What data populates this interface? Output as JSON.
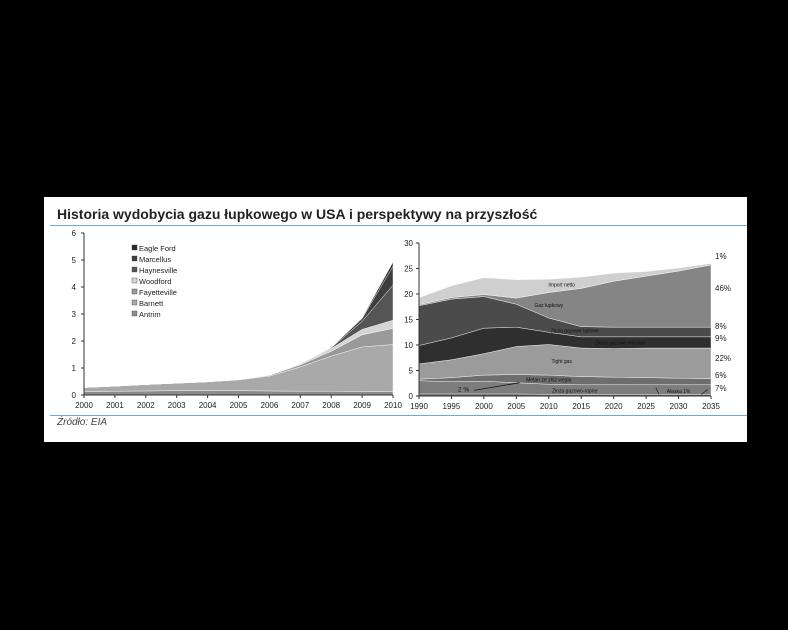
{
  "header": {
    "title": "Historia wydobycia gazu łupkowego w USA i perspektywy na przyszłość"
  },
  "footer": {
    "source": "Źródło: EIA"
  },
  "colors": {
    "rule": "#6fa8d6",
    "background": "#000000",
    "panel": "#ffffff"
  },
  "chart_data": [
    {
      "type": "area",
      "stacked": true,
      "title": "",
      "xlabel": "",
      "ylabel": "",
      "x": [
        2000,
        2001,
        2002,
        2003,
        2004,
        2005,
        2006,
        2007,
        2008,
        2009,
        2010
      ],
      "xticks": [
        "2000",
        "2001",
        "2002",
        "2003",
        "2004",
        "2005",
        "2006",
        "2007",
        "2008",
        "2009",
        "2010"
      ],
      "yticks": [
        "0",
        "1",
        "2",
        "3",
        "4",
        "5",
        "6"
      ],
      "ylim": [
        0,
        6
      ],
      "grid": false,
      "legend_position": "top-left",
      "series": [
        {
          "name": "Antrim",
          "color": "#8c8c8c",
          "values": [
            0.12,
            0.14,
            0.15,
            0.16,
            0.16,
            0.16,
            0.15,
            0.14,
            0.14,
            0.13,
            0.12
          ]
        },
        {
          "name": "Barnett",
          "color": "#a9a9a9",
          "values": [
            0.16,
            0.19,
            0.24,
            0.28,
            0.33,
            0.4,
            0.55,
            0.9,
            1.3,
            1.65,
            1.75
          ]
        },
        {
          "name": "Fayetteville",
          "color": "#9a9a9a",
          "values": [
            0,
            0,
            0,
            0,
            0,
            0.01,
            0.03,
            0.08,
            0.18,
            0.45,
            0.6
          ]
        },
        {
          "name": "Woodford",
          "color": "#d4d4d4",
          "values": [
            0,
            0,
            0,
            0,
            0,
            0,
            0.01,
            0.04,
            0.1,
            0.2,
            0.3
          ]
        },
        {
          "name": "Haynesville",
          "color": "#555555",
          "values": [
            0,
            0,
            0,
            0,
            0,
            0,
            0,
            0,
            0.03,
            0.3,
            1.3
          ]
        },
        {
          "name": "Marcellus",
          "color": "#3e3e3e",
          "values": [
            0,
            0,
            0,
            0,
            0,
            0,
            0,
            0,
            0.01,
            0.1,
            0.7
          ]
        },
        {
          "name": "Eagle Ford",
          "color": "#2a2a2a",
          "values": [
            0,
            0,
            0,
            0,
            0,
            0,
            0,
            0,
            0,
            0.02,
            0.15
          ]
        }
      ]
    },
    {
      "type": "area",
      "stacked": true,
      "title": "",
      "xlabel": "",
      "ylabel": "",
      "x": [
        1990,
        1995,
        2000,
        2005,
        2010,
        2015,
        2020,
        2025,
        2030,
        2035
      ],
      "xticks": [
        "1990",
        "1995",
        "2000",
        "2005",
        "2010",
        "2015",
        "2020",
        "2025",
        "2030",
        "2035"
      ],
      "yticks": [
        "0",
        "5",
        "10",
        "15",
        "20",
        "25",
        "30"
      ],
      "ylim": [
        0,
        30
      ],
      "grid": false,
      "series": [
        {
          "name": "Alaska 1%",
          "color": "#5a5a5a",
          "values": [
            0.4,
            0.4,
            0.4,
            0.4,
            0.3,
            0.3,
            0.3,
            0.3,
            0.3,
            0.3
          ]
        },
        {
          "name": "Złoża gazowo-ropne",
          "color": "#7d7d7d",
          "values": [
            2.6,
            2.4,
            2.5,
            2.2,
            2.0,
            1.9,
            1.9,
            1.9,
            1.9,
            1.9
          ]
        },
        {
          "name": "Metan ze złóż węgla",
          "color": "#6e6e6e",
          "values": [
            0.3,
            0.8,
            1.2,
            1.6,
            1.8,
            1.6,
            1.5,
            1.4,
            1.3,
            1.2
          ]
        },
        {
          "name": "Tight gas",
          "color": "#9b9b9b",
          "values": [
            3.0,
            3.5,
            4.2,
            5.5,
            6.0,
            5.6,
            5.6,
            5.8,
            5.9,
            6.0
          ]
        },
        {
          "name": "Złoża gazowe morskie",
          "color": "#2f2f2f",
          "values": [
            3.6,
            4.3,
            5.0,
            3.8,
            2.4,
            2.2,
            2.3,
            2.2,
            2.2,
            2.2
          ]
        },
        {
          "name": "Złoża gazowe lądowe",
          "color": "#4b4b4b",
          "values": [
            7.8,
            7.6,
            6.2,
            4.5,
            2.8,
            2.0,
            1.9,
            1.9,
            1.9,
            1.9
          ]
        },
        {
          "name": "Gaz łupkowy",
          "color": "#858585",
          "values": [
            0.2,
            0.3,
            0.4,
            1.2,
            5.0,
            7.5,
            9.0,
            10.0,
            11.0,
            12.2
          ]
        },
        {
          "name": "Import netto",
          "color": "#cfcfcf",
          "values": [
            1.4,
            2.3,
            3.3,
            3.6,
            2.6,
            2.2,
            1.6,
            0.9,
            0.6,
            0.3
          ]
        }
      ],
      "annotations": {
        "right_percentages": [
          "1%",
          "46%",
          "8%",
          "9%",
          "22%",
          "6%",
          "7%"
        ],
        "inline": [
          "2 %"
        ]
      }
    }
  ]
}
